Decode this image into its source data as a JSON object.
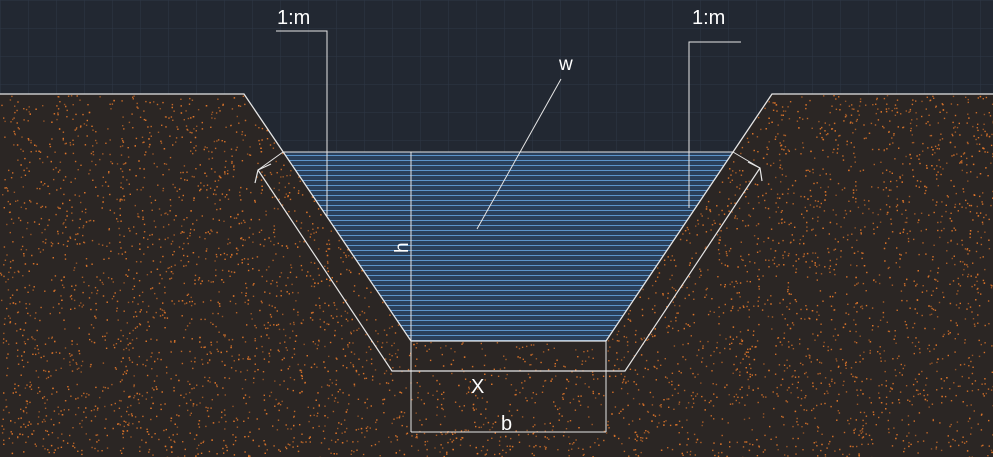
{
  "diagram": {
    "labels": {
      "slope_left": "1:m",
      "slope_right": "1:m",
      "water": "w",
      "depth": "h",
      "flow_perimeter": "X",
      "bottom_width": "b"
    },
    "colors": {
      "background": "#222832",
      "grid": "#2e3746",
      "soil": "#2b2624",
      "soil_speckle": "#e0762a",
      "water_fill": "#2a3f5a",
      "water_lines": "#5b93c9",
      "linework": "#e6e6e6",
      "text": "#ffffff"
    }
  }
}
